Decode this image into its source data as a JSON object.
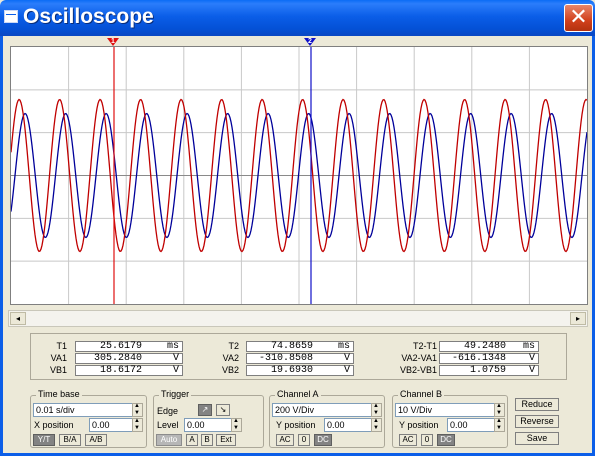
{
  "window": {
    "title": "Oscilloscope",
    "close_glyph": "✕"
  },
  "markers": [
    {
      "label": "1",
      "color": "#e01010",
      "x_ms": 25.6179
    },
    {
      "label": "2",
      "color": "#1010c8",
      "x_ms": 74.8659
    }
  ],
  "traces": {
    "channel_a_color": "#c00000",
    "channel_b_color": "#00009a"
  },
  "scrollbar": {
    "left_glyph": "◂",
    "right_glyph": "▸"
  },
  "readout": {
    "t1": {
      "label": "T1",
      "value": "25.6179",
      "unit": "ms"
    },
    "va1": {
      "label": "VA1",
      "value": "305.2840",
      "unit": "V"
    },
    "vb1": {
      "label": "VB1",
      "value": "18.6172",
      "unit": "V"
    },
    "t2": {
      "label": "T2",
      "value": "74.8659",
      "unit": "ms"
    },
    "va2": {
      "label": "VA2",
      "value": "-310.8508",
      "unit": "V"
    },
    "vb2": {
      "label": "VB2",
      "value": "19.6930",
      "unit": "V"
    },
    "t21": {
      "label": "T2-T1",
      "value": "49.2480",
      "unit": "ms"
    },
    "va21": {
      "label": "VA2-VA1",
      "value": "-616.1348",
      "unit": "V"
    },
    "vb21": {
      "label": "VB2-VB1",
      "value": "1.0759",
      "unit": "V"
    }
  },
  "timebase": {
    "title": "Time base",
    "value": "0.01 s/div",
    "xpos_label": "X position",
    "xpos": "0.00",
    "buttons": [
      "Y/T",
      "B/A",
      "A/B"
    ]
  },
  "trigger": {
    "title": "Trigger",
    "edge_label": "Edge",
    "level_label": "Level",
    "level": "0.00",
    "buttons": [
      "Auto",
      "A",
      "B",
      "Ext"
    ]
  },
  "channel_a": {
    "title": "Channel A",
    "value": "200 V/Div",
    "ypos_label": "Y position",
    "ypos": "0.00",
    "buttons": [
      "AC",
      "0",
      "DC"
    ]
  },
  "channel_b": {
    "title": "Channel B",
    "value": "10 V/Div",
    "ypos_label": "Y position",
    "ypos": "0.00",
    "buttons": [
      "AC",
      "0",
      "DC"
    ]
  },
  "actions": {
    "reduce": "Reduce",
    "reverse": "Reverse",
    "save": "Save"
  }
}
